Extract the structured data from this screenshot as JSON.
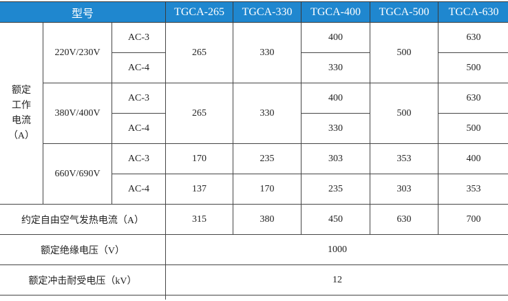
{
  "header": {
    "model_label": "型号",
    "models": [
      "TGCA-265",
      "TGCA-330",
      "TGCA-400",
      "TGCA-500",
      "TGCA-630"
    ]
  },
  "rated_current": {
    "label_lines": [
      "额定",
      "工作",
      "电流",
      "（A）"
    ],
    "groups": [
      {
        "voltage": "220V/230V",
        "ac3_label": "AC-3",
        "ac4_label": "AC-4",
        "merged": [
          "265",
          "330"
        ],
        "c400": [
          "400",
          "330"
        ],
        "c500": "500",
        "c630": [
          "630",
          "500"
        ]
      },
      {
        "voltage": "380V/400V",
        "ac3_label": "AC-3",
        "ac4_label": "AC-4",
        "merged": [
          "265",
          "330"
        ],
        "c400": [
          "400",
          "330"
        ],
        "c500": "500",
        "c630": [
          "630",
          "500"
        ]
      },
      {
        "voltage": "660V/690V",
        "ac3_label": "AC-3",
        "ac4_label": "AC-4",
        "ac3": [
          "170",
          "235",
          "303",
          "353",
          "400"
        ],
        "ac4": [
          "137",
          "170",
          "235",
          "303",
          "353"
        ]
      }
    ]
  },
  "thermal": {
    "label": "约定自由空气发热电流（A）",
    "values": [
      "315",
      "380",
      "450",
      "630",
      "700"
    ]
  },
  "insulation": {
    "label": "额定绝缘电压（V）",
    "value": "1000"
  },
  "impulse": {
    "label": "额定冲击耐受电压（kV）",
    "value": "12"
  }
}
